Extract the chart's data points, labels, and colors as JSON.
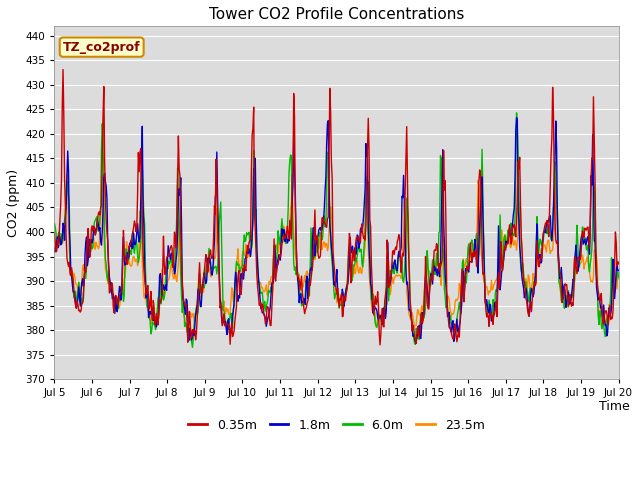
{
  "title": "Tower CO2 Profile Concentrations",
  "xlabel": "Time",
  "ylabel": "CO2 (ppm)",
  "ylim": [
    370,
    442
  ],
  "yticks": [
    370,
    375,
    380,
    385,
    390,
    395,
    400,
    405,
    410,
    415,
    420,
    425,
    430,
    435,
    440
  ],
  "annotation_text": "TZ_co2prof",
  "annotation_color": "#8B0000",
  "annotation_bg": "#FFFFCC",
  "annotation_border": "#CC8800",
  "fig_bg": "#FFFFFF",
  "plot_bg": "#DCDCDC",
  "series_colors": [
    "#CC0000",
    "#0000CC",
    "#00BB00",
    "#FF8C00"
  ],
  "series_labels": [
    "0.35m",
    "1.8m",
    "6.0m",
    "23.5m"
  ],
  "line_width": 1.0,
  "grid_color": "#FFFFFF",
  "date_labels": [
    "Jul 5",
    "Jul 6",
    "Jul 7",
    "Jul 8",
    "Jul 9",
    "Jul 10",
    "Jul 11",
    "Jul 12",
    "Jul 13",
    "Jul 14",
    "Jul 15",
    "Jul 16",
    "Jul 17",
    "Jul 18",
    "Jul 19",
    "Jul 20"
  ]
}
